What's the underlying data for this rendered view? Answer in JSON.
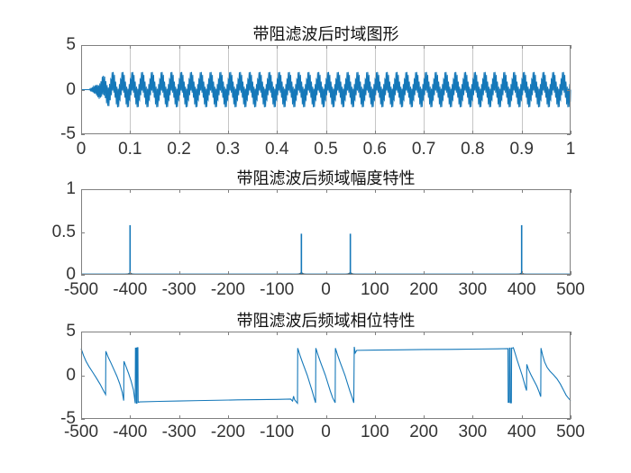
{
  "figure": {
    "background": "#ffffff",
    "axis_color": "#808080",
    "grid_color": "#c6c6c6",
    "tick_label_color": "#333333",
    "title_color": "#111111",
    "line_color": "#1578b9",
    "skirt_color": "#56544a"
  },
  "chart_data": [
    {
      "type": "line",
      "title": "带阻滤波后时域图形",
      "xlabel": "",
      "ylabel": "",
      "xlim": [
        0,
        1
      ],
      "ylim": [
        -5,
        5
      ],
      "x_ticks": [
        0,
        0.1,
        0.2,
        0.3,
        0.4,
        0.5,
        0.6,
        0.7,
        0.8,
        0.9,
        1
      ],
      "x_tick_labels": [
        "0",
        "0.1",
        "0.2",
        "0.3",
        "0.4",
        "0.5",
        "0.6",
        "0.7",
        "0.8",
        "0.9",
        "1"
      ],
      "y_ticks": [
        -5,
        0,
        5
      ],
      "y_tick_labels": [
        "-5",
        "0",
        "5"
      ],
      "grid_x": true,
      "signal": {
        "description": "band-stop filtered time signal: remaining 50 Hz and 400 Hz sinusoid components, zero then ramping transient at start",
        "components": [
          {
            "freq_hz": 50,
            "amplitude": 0.95
          },
          {
            "freq_hz": 400,
            "amplitude": 1.15
          }
        ],
        "transient": {
          "zero_until_s": 0.016,
          "hf_full_by_s": 0.045,
          "lf_start_s": 0.028,
          "lf_full_by_s": 0.06
        },
        "duration_s": 1
      }
    },
    {
      "type": "line",
      "title": "带阻滤波后频域幅度特性",
      "xlabel": "",
      "ylabel": "",
      "xlim": [
        -500,
        500
      ],
      "ylim": [
        0,
        1
      ],
      "x_ticks": [
        -500,
        -400,
        -300,
        -200,
        -100,
        0,
        100,
        200,
        300,
        400,
        500
      ],
      "x_tick_labels": [
        "-500",
        "-400",
        "-300",
        "-200",
        "-100",
        "0",
        "100",
        "200",
        "300",
        "400",
        "500"
      ],
      "y_ticks": [
        0,
        0.5,
        1
      ],
      "y_tick_labels": [
        "0",
        "0.5",
        "1"
      ],
      "grid_x": false,
      "peaks": [
        {
          "freq_hz": -400,
          "magnitude": 0.58
        },
        {
          "freq_hz": -50,
          "magnitude": 0.48
        },
        {
          "freq_hz": 50,
          "magnitude": 0.48
        },
        {
          "freq_hz": 400,
          "magnitude": 0.58
        }
      ],
      "skirts": [
        {
          "freq_hz": -400,
          "half_width_hz": 13,
          "height": 0.025
        },
        {
          "freq_hz": -50,
          "half_width_hz": 12,
          "height": 0.03
        },
        {
          "freq_hz": 0,
          "half_width_hz": 7,
          "height": 0.014
        },
        {
          "freq_hz": 50,
          "half_width_hz": 12,
          "height": 0.03
        },
        {
          "freq_hz": 400,
          "half_width_hz": 13,
          "height": 0.025
        }
      ]
    },
    {
      "type": "line",
      "title": "带阻滤波后频域相位特性",
      "xlabel": "",
      "ylabel": "",
      "xlim": [
        -500,
        500
      ],
      "ylim": [
        -5,
        5
      ],
      "x_ticks": [
        -500,
        -400,
        -300,
        -200,
        -100,
        0,
        100,
        200,
        300,
        400,
        500
      ],
      "x_tick_labels": [
        "-500",
        "-400",
        "-300",
        "-200",
        "-100",
        "0",
        "100",
        "200",
        "300",
        "400",
        "500"
      ],
      "y_ticks": [
        -5,
        0,
        5
      ],
      "y_tick_labels": [
        "-5",
        "0",
        "5"
      ],
      "grid_x": false,
      "points": [
        [
          -500,
          3.05
        ],
        [
          -495,
          2.25
        ],
        [
          -490,
          1.6
        ],
        [
          -484,
          1.0
        ],
        [
          -477,
          0.4
        ],
        [
          -469,
          -0.3
        ],
        [
          -461,
          -1.05
        ],
        [
          -454,
          -1.8
        ],
        [
          -450,
          -2.2
        ],
        [
          -449.5,
          2.75
        ],
        [
          -445,
          2.1
        ],
        [
          -439,
          1.4
        ],
        [
          -433,
          0.65
        ],
        [
          -427,
          -0.1
        ],
        [
          -421,
          -1.0
        ],
        [
          -416,
          -1.95
        ],
        [
          -413,
          -2.9
        ],
        [
          -412.5,
          1.6
        ],
        [
          -408,
          0.95
        ],
        [
          -403,
          0.2
        ],
        [
          -398,
          -0.65
        ],
        [
          -393,
          -1.7
        ],
        [
          -389.5,
          -3.2
        ],
        [
          -389,
          3.1
        ],
        [
          -387.5,
          3.1
        ],
        [
          -387,
          -3.2
        ],
        [
          -386,
          -3.2
        ],
        [
          -385.5,
          3.15
        ],
        [
          -384,
          3.15
        ],
        [
          -383.5,
          -3.1
        ],
        [
          -380,
          -3.05
        ],
        [
          -340,
          -2.99
        ],
        [
          -300,
          -2.94
        ],
        [
          -260,
          -2.9
        ],
        [
          -220,
          -2.86
        ],
        [
          -180,
          -2.82
        ],
        [
          -140,
          -2.79
        ],
        [
          -100,
          -2.76
        ],
        [
          -72,
          -2.73
        ],
        [
          -68,
          -2.95
        ],
        [
          -66,
          -2.4
        ],
        [
          -64,
          -2.78
        ],
        [
          -61,
          -3.0
        ],
        [
          -58,
          -3.2
        ],
        [
          -57.5,
          3.1
        ],
        [
          -53,
          2.3
        ],
        [
          -48,
          1.5
        ],
        [
          -43,
          0.75
        ],
        [
          -38,
          0.0
        ],
        [
          -33,
          -0.9
        ],
        [
          -28,
          -1.8
        ],
        [
          -24,
          -2.6
        ],
        [
          -21,
          -3.15
        ],
        [
          -20.5,
          3.1
        ],
        [
          -16,
          2.3
        ],
        [
          -11,
          1.5
        ],
        [
          -6,
          0.75
        ],
        [
          -1,
          0.0
        ],
        [
          4,
          -0.9
        ],
        [
          9,
          -1.8
        ],
        [
          14,
          -2.6
        ],
        [
          19,
          -3.15
        ],
        [
          19.5,
          3.1
        ],
        [
          24,
          2.3
        ],
        [
          29,
          1.5
        ],
        [
          34,
          0.75
        ],
        [
          39,
          0.0
        ],
        [
          44,
          -0.9
        ],
        [
          49,
          -1.8
        ],
        [
          54,
          -2.6
        ],
        [
          57,
          -3.15
        ],
        [
          58,
          3.25
        ],
        [
          60,
          2.55
        ],
        [
          63,
          2.85
        ],
        [
          100,
          2.88
        ],
        [
          150,
          2.91
        ],
        [
          200,
          2.94
        ],
        [
          250,
          2.96
        ],
        [
          300,
          2.99
        ],
        [
          350,
          3.02
        ],
        [
          372,
          3.05
        ],
        [
          372.5,
          -3.1
        ],
        [
          374.5,
          -3.1
        ],
        [
          375,
          3.1
        ],
        [
          376.5,
          3.1
        ],
        [
          377,
          -3.15
        ],
        [
          379,
          -3.15
        ],
        [
          379.5,
          3.12
        ],
        [
          382,
          3.12
        ],
        [
          383,
          3.15
        ],
        [
          387,
          2.45
        ],
        [
          391,
          1.7
        ],
        [
          396,
          0.85
        ],
        [
          401,
          0.0
        ],
        [
          405,
          -0.8
        ],
        [
          408,
          -1.4
        ],
        [
          410,
          -1.75
        ],
        [
          410.5,
          1.25
        ],
        [
          414,
          0.65
        ],
        [
          419,
          0.05
        ],
        [
          425,
          -0.6
        ],
        [
          431,
          -1.25
        ],
        [
          436,
          -1.95
        ],
        [
          439,
          -2.45
        ],
        [
          439.5,
          3.1
        ],
        [
          443,
          2.25
        ],
        [
          447,
          1.5
        ],
        [
          452,
          0.9
        ],
        [
          458,
          0.45
        ],
        [
          465,
          0.05
        ],
        [
          472,
          -0.4
        ],
        [
          479,
          -1.0
        ],
        [
          485,
          -1.65
        ],
        [
          491,
          -2.3
        ],
        [
          496,
          -2.65
        ],
        [
          500,
          -2.9
        ]
      ]
    }
  ]
}
